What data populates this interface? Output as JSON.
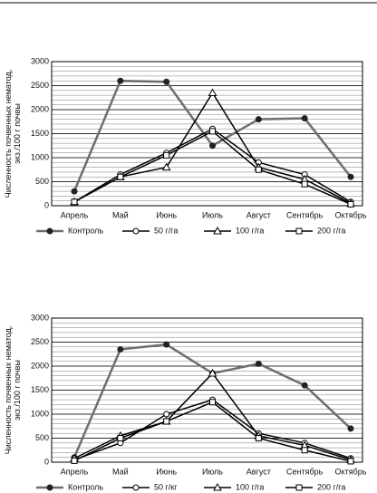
{
  "chart_data": [
    {
      "type": "line",
      "ylabel": [
        "Численность почвенных нематод,",
        "экз./100 г почвы"
      ],
      "categories": [
        "Апрель",
        "Май",
        "Июнь",
        "Июль",
        "Август",
        "Сентябрь",
        "Октябрь"
      ],
      "ylim": [
        0,
        3000
      ],
      "yticks": [
        0,
        500,
        1000,
        1500,
        2000,
        2500,
        3000
      ],
      "grid": true,
      "series": [
        {
          "name": "Контроль",
          "color": "#6e6e6e",
          "marker": "filled-circle",
          "values": [
            300,
            2600,
            2580,
            1250,
            1800,
            1820,
            600
          ]
        },
        {
          "name": "50 г/га",
          "color": "#000000",
          "marker": "circle",
          "values": [
            80,
            650,
            1100,
            1600,
            900,
            650,
            80
          ]
        },
        {
          "name": "100 г/га",
          "color": "#000000",
          "marker": "triangle",
          "values": [
            80,
            600,
            800,
            2350,
            800,
            550,
            50
          ]
        },
        {
          "name": "200 г/га",
          "color": "#000000",
          "marker": "square",
          "values": [
            80,
            600,
            1050,
            1550,
            750,
            450,
            30
          ]
        }
      ]
    },
    {
      "type": "line",
      "ylabel": [
        "Численность почвенных нематод,",
        "экз./100 г почвы"
      ],
      "categories": [
        "Апрель",
        "Май",
        "Июнь",
        "Июль",
        "Август",
        "Сентябрь",
        "Октябрь"
      ],
      "ylim": [
        0,
        3000
      ],
      "yticks": [
        0,
        500,
        1000,
        1500,
        2000,
        2500,
        3000
      ],
      "grid": true,
      "series": [
        {
          "name": "Контроль",
          "color": "#6e6e6e",
          "marker": "filled-circle",
          "values": [
            100,
            2350,
            2450,
            1850,
            2050,
            1600,
            700
          ]
        },
        {
          "name": "50 г/кг",
          "color": "#000000",
          "marker": "circle",
          "values": [
            50,
            400,
            1000,
            1300,
            600,
            400,
            80
          ]
        },
        {
          "name": "100 г/га",
          "color": "#000000",
          "marker": "triangle",
          "values": [
            80,
            550,
            850,
            1850,
            550,
            350,
            50
          ]
        },
        {
          "name": "200 г/га",
          "color": "#000000",
          "marker": "square",
          "values": [
            30,
            500,
            850,
            1250,
            500,
            250,
            20
          ]
        }
      ]
    }
  ]
}
